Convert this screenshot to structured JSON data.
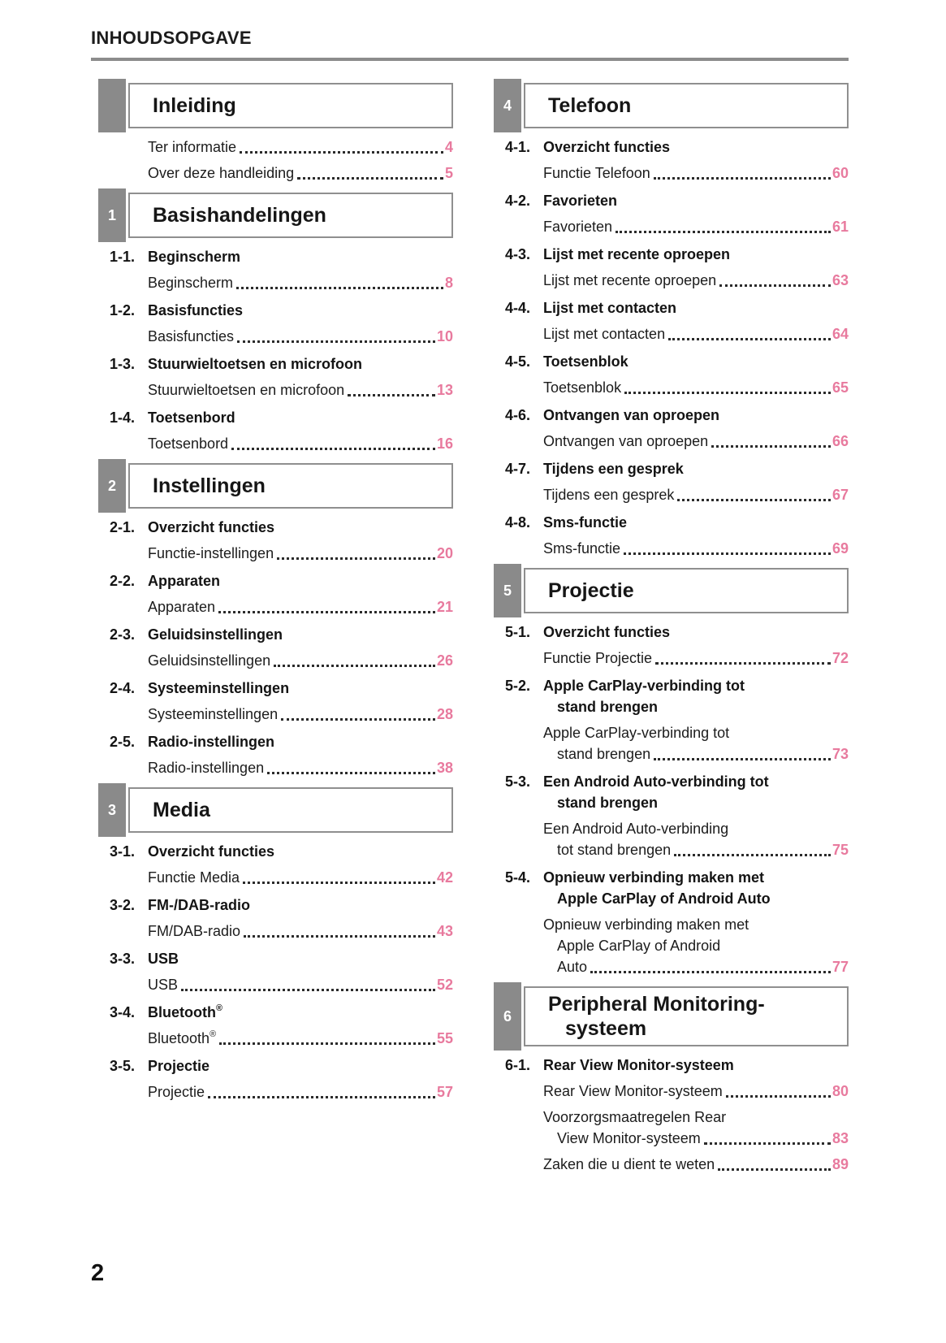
{
  "header": {
    "title": "INHOUDSOPGAVE"
  },
  "footer": {
    "page_number": "2"
  },
  "colors": {
    "accent_pink": "#e87a9e",
    "tab_gray": "#8a8a8a",
    "border_gray": "#8f8f8f",
    "rule_gray": "#8c8c8c"
  },
  "columns": [
    {
      "sections": [
        {
          "tab": "",
          "title_lines": [
            "Inleiding"
          ],
          "groups": [
            {
              "heading_num": null,
              "heading_lines": null,
              "entries": [
                {
                  "lines": [
                    "Ter informatie"
                  ],
                  "page": "4"
                },
                {
                  "lines": [
                    "Over deze handleiding"
                  ],
                  "page": "5"
                }
              ]
            }
          ]
        },
        {
          "tab": "1",
          "title_lines": [
            "Basishandelingen"
          ],
          "groups": [
            {
              "heading_num": "1-1.",
              "heading_lines": [
                "Beginscherm"
              ],
              "entries": [
                {
                  "lines": [
                    "Beginscherm"
                  ],
                  "page": "8"
                }
              ]
            },
            {
              "heading_num": "1-2.",
              "heading_lines": [
                "Basisfuncties"
              ],
              "entries": [
                {
                  "lines": [
                    "Basisfuncties"
                  ],
                  "page": "10"
                }
              ]
            },
            {
              "heading_num": "1-3.",
              "heading_lines": [
                "Stuurwieltoetsen en microfoon"
              ],
              "entries": [
                {
                  "lines": [
                    "Stuurwieltoetsen en microfoon"
                  ],
                  "page": "13"
                }
              ]
            },
            {
              "heading_num": "1-4.",
              "heading_lines": [
                "Toetsenbord"
              ],
              "entries": [
                {
                  "lines": [
                    "Toetsenbord"
                  ],
                  "page": "16"
                }
              ]
            }
          ]
        },
        {
          "tab": "2",
          "title_lines": [
            "Instellingen"
          ],
          "groups": [
            {
              "heading_num": "2-1.",
              "heading_lines": [
                "Overzicht functies"
              ],
              "entries": [
                {
                  "lines": [
                    "Functie-instellingen"
                  ],
                  "page": "20"
                }
              ]
            },
            {
              "heading_num": "2-2.",
              "heading_lines": [
                "Apparaten"
              ],
              "entries": [
                {
                  "lines": [
                    "Apparaten"
                  ],
                  "page": "21"
                }
              ]
            },
            {
              "heading_num": "2-3.",
              "heading_lines": [
                "Geluidsinstellingen"
              ],
              "entries": [
                {
                  "lines": [
                    "Geluidsinstellingen"
                  ],
                  "page": "26"
                }
              ]
            },
            {
              "heading_num": "2-4.",
              "heading_lines": [
                "Systeeminstellingen"
              ],
              "entries": [
                {
                  "lines": [
                    "Systeeminstellingen"
                  ],
                  "page": "28"
                }
              ]
            },
            {
              "heading_num": "2-5.",
              "heading_lines": [
                "Radio-instellingen"
              ],
              "entries": [
                {
                  "lines": [
                    "Radio-instellingen"
                  ],
                  "page": "38"
                }
              ]
            }
          ]
        },
        {
          "tab": "3",
          "title_lines": [
            "Media"
          ],
          "groups": [
            {
              "heading_num": "3-1.",
              "heading_lines": [
                "Overzicht functies"
              ],
              "entries": [
                {
                  "lines": [
                    "Functie Media"
                  ],
                  "page": "42"
                }
              ]
            },
            {
              "heading_num": "3-2.",
              "heading_lines": [
                "FM-/DAB-radio"
              ],
              "entries": [
                {
                  "lines": [
                    "FM/DAB-radio"
                  ],
                  "page": "43"
                }
              ]
            },
            {
              "heading_num": "3-3.",
              "heading_lines": [
                "USB"
              ],
              "entries": [
                {
                  "lines": [
                    "USB"
                  ],
                  "page": "52"
                }
              ]
            },
            {
              "heading_num": "3-4.",
              "heading_lines": [
                "Bluetooth®"
              ],
              "entries": [
                {
                  "lines": [
                    "Bluetooth®"
                  ],
                  "page": "55"
                }
              ]
            },
            {
              "heading_num": "3-5.",
              "heading_lines": [
                "Projectie"
              ],
              "entries": [
                {
                  "lines": [
                    "Projectie"
                  ],
                  "page": "57"
                }
              ]
            }
          ]
        }
      ]
    },
    {
      "sections": [
        {
          "tab": "4",
          "title_lines": [
            "Telefoon"
          ],
          "groups": [
            {
              "heading_num": "4-1.",
              "heading_lines": [
                "Overzicht functies"
              ],
              "entries": [
                {
                  "lines": [
                    "Functie Telefoon"
                  ],
                  "page": "60"
                }
              ]
            },
            {
              "heading_num": "4-2.",
              "heading_lines": [
                "Favorieten"
              ],
              "entries": [
                {
                  "lines": [
                    "Favorieten"
                  ],
                  "page": "61"
                }
              ]
            },
            {
              "heading_num": "4-3.",
              "heading_lines": [
                "Lijst met recente oproepen"
              ],
              "entries": [
                {
                  "lines": [
                    "Lijst met recente oproepen"
                  ],
                  "page": "63"
                }
              ]
            },
            {
              "heading_num": "4-4.",
              "heading_lines": [
                "Lijst met contacten"
              ],
              "entries": [
                {
                  "lines": [
                    "Lijst met contacten"
                  ],
                  "page": "64"
                }
              ]
            },
            {
              "heading_num": "4-5.",
              "heading_lines": [
                "Toetsenblok"
              ],
              "entries": [
                {
                  "lines": [
                    "Toetsenblok"
                  ],
                  "page": "65"
                }
              ]
            },
            {
              "heading_num": "4-6.",
              "heading_lines": [
                "Ontvangen van oproepen"
              ],
              "entries": [
                {
                  "lines": [
                    "Ontvangen van oproepen"
                  ],
                  "page": "66"
                }
              ]
            },
            {
              "heading_num": "4-7.",
              "heading_lines": [
                "Tijdens een gesprek"
              ],
              "entries": [
                {
                  "lines": [
                    "Tijdens een gesprek"
                  ],
                  "page": "67"
                }
              ]
            },
            {
              "heading_num": "4-8.",
              "heading_lines": [
                "Sms-functie"
              ],
              "entries": [
                {
                  "lines": [
                    "Sms-functie"
                  ],
                  "page": "69"
                }
              ]
            }
          ]
        },
        {
          "tab": "5",
          "title_lines": [
            "Projectie"
          ],
          "groups": [
            {
              "heading_num": "5-1.",
              "heading_lines": [
                "Overzicht functies"
              ],
              "entries": [
                {
                  "lines": [
                    "Functie Projectie"
                  ],
                  "page": "72"
                }
              ]
            },
            {
              "heading_num": "5-2.",
              "heading_lines": [
                "Apple CarPlay-verbinding tot",
                "stand brengen"
              ],
              "entries": [
                {
                  "lines": [
                    "Apple CarPlay-verbinding tot",
                    "stand brengen"
                  ],
                  "page": "73"
                }
              ]
            },
            {
              "heading_num": "5-3.",
              "heading_lines": [
                "Een Android Auto-verbinding tot",
                "stand brengen"
              ],
              "entries": [
                {
                  "lines": [
                    "Een Android Auto-verbinding",
                    "tot stand brengen"
                  ],
                  "page": "75"
                }
              ]
            },
            {
              "heading_num": "5-4.",
              "heading_lines": [
                "Opnieuw verbinding maken met",
                "Apple CarPlay of Android Auto"
              ],
              "entries": [
                {
                  "lines": [
                    "Opnieuw verbinding maken met",
                    "Apple CarPlay of Android",
                    "Auto"
                  ],
                  "page": "77"
                }
              ]
            }
          ]
        },
        {
          "tab": "6",
          "title_lines": [
            "Peripheral Monitoring-",
            "systeem"
          ],
          "groups": [
            {
              "heading_num": "6-1.",
              "heading_lines": [
                "Rear View Monitor-systeem"
              ],
              "entries": [
                {
                  "lines": [
                    "Rear View Monitor-systeem"
                  ],
                  "page": "80"
                },
                {
                  "lines": [
                    "Voorzorgsmaatregelen Rear",
                    "View Monitor-systeem"
                  ],
                  "page": "83"
                },
                {
                  "lines": [
                    "Zaken die u dient te weten"
                  ],
                  "page": "89"
                }
              ]
            }
          ]
        }
      ]
    }
  ]
}
